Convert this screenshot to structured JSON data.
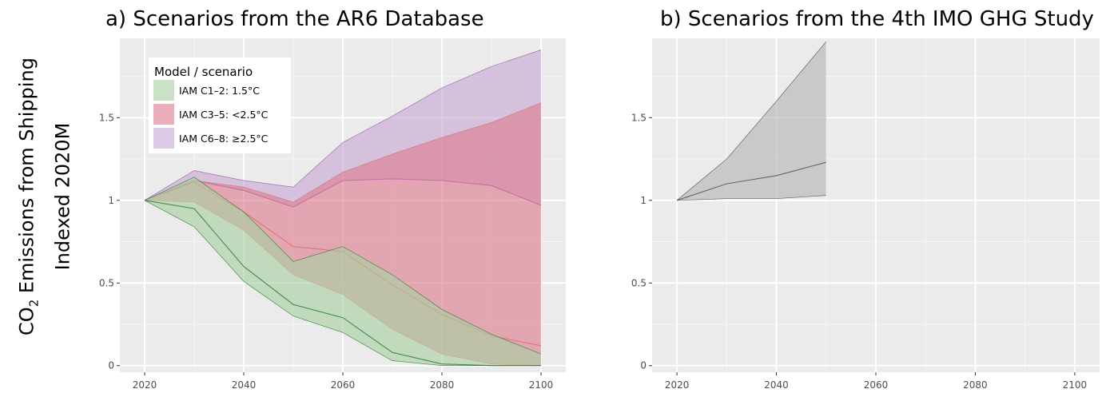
{
  "y_axis_label": {
    "line1_prefix": "CO",
    "line1_subscript": "2",
    "line1_suffix": " Emissions from Shipping",
    "line2": "Indexed 2020M"
  },
  "chart_data": [
    {
      "type": "area",
      "title": "a) Scenarios from the AR6 Database",
      "xlim": [
        2015,
        2105
      ],
      "ylim": [
        -0.04,
        1.98
      ],
      "xticks": [
        2020,
        2040,
        2060,
        2080,
        2100
      ],
      "xtick_labels": [
        "2020",
        "2040",
        "2060",
        "2080",
        "2100"
      ],
      "yticks": [
        0,
        0.5,
        1,
        1.5
      ],
      "ytick_labels": [
        "0",
        "0.5",
        "1",
        "1.5"
      ],
      "grid": true,
      "legend": {
        "title": "Model / scenario",
        "placement": "top-left",
        "entries": [
          "IAM C1–2: 1.5°C",
          "IAM C3–5: <2.5°C",
          "IAM C6–8: ≥2.5°C"
        ]
      },
      "x": [
        2020,
        2030,
        2040,
        2050,
        2060,
        2070,
        2080,
        2090,
        2100
      ],
      "series": [
        {
          "name": "IAM C6–8: ≥2.5°C",
          "color": "#9b59b6",
          "fill": "#c9a8d3",
          "lower": [
            1.0,
            1.12,
            1.06,
            0.96,
            1.12,
            1.13,
            1.12,
            1.09,
            0.97
          ],
          "upper": [
            1.0,
            1.18,
            1.12,
            1.08,
            1.35,
            1.51,
            1.68,
            1.81,
            1.91
          ],
          "median": [
            1.0,
            1.12,
            1.06,
            0.96,
            1.12,
            1.13,
            1.12,
            1.09,
            0.97
          ]
        },
        {
          "name": "IAM C3–5: <2.5°C",
          "color": "#e26b6b",
          "fill": "#dc7d8e",
          "lower": [
            1.0,
            0.99,
            0.82,
            0.55,
            0.43,
            0.22,
            0.07,
            0.01,
            0.0
          ],
          "upper": [
            1.0,
            1.12,
            1.08,
            0.99,
            1.17,
            1.28,
            1.38,
            1.47,
            1.59
          ],
          "median": [
            1.0,
            1.11,
            0.93,
            0.72,
            0.69,
            0.49,
            0.31,
            0.18,
            0.12
          ]
        },
        {
          "name": "IAM C1–2: 1.5°C",
          "color": "#2e7d32",
          "fill": "#a8d0a1",
          "lower": [
            1.0,
            0.84,
            0.51,
            0.3,
            0.2,
            0.03,
            0.0,
            0.0,
            0.0
          ],
          "upper": [
            1.0,
            1.14,
            0.93,
            0.63,
            0.72,
            0.55,
            0.34,
            0.19,
            0.07
          ],
          "median": [
            1.0,
            0.95,
            0.6,
            0.37,
            0.29,
            0.08,
            0.01,
            0.0,
            0.0
          ]
        }
      ]
    },
    {
      "type": "area",
      "title": "b) Scenarios from the 4th IMO GHG Study",
      "xlim": [
        2015,
        2105
      ],
      "ylim": [
        -0.04,
        1.98
      ],
      "xticks": [
        2020,
        2040,
        2060,
        2080,
        2100
      ],
      "xtick_labels": [
        "2020",
        "2040",
        "2060",
        "2080",
        "2100"
      ],
      "yticks": [
        0,
        0.5,
        1,
        1.5
      ],
      "ytick_labels": [
        "0",
        "0.5",
        "1",
        "1.5"
      ],
      "grid": true,
      "x": [
        2020,
        2030,
        2040,
        2050
      ],
      "series": [
        {
          "color": "#555555",
          "fill": "#b4b4b4",
          "lower": [
            1.0,
            1.01,
            1.01,
            1.03
          ],
          "upper": [
            1.0,
            1.25,
            1.6,
            1.96
          ],
          "median": [
            1.0,
            1.1,
            1.15,
            1.23
          ]
        }
      ]
    }
  ]
}
